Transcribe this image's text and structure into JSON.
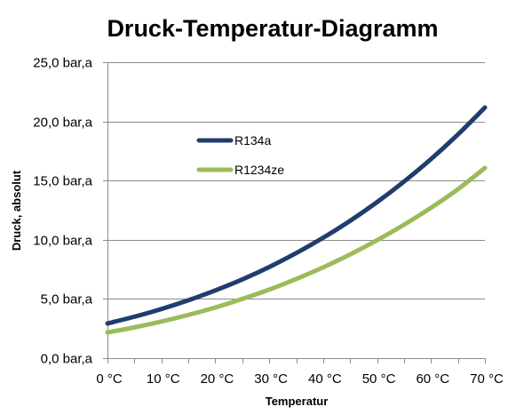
{
  "chart_data": {
    "type": "line",
    "title": "Druck-Temperatur-Diagramm",
    "xlabel": "Temperatur",
    "ylabel": "Druck, absolut",
    "x": [
      0,
      5,
      10,
      15,
      20,
      25,
      30,
      35,
      40,
      45,
      50,
      55,
      60,
      65,
      70
    ],
    "x_tick_values": [
      0,
      10,
      20,
      30,
      40,
      50,
      60,
      70
    ],
    "x_tick_labels": [
      "0 °C",
      "10 °C",
      "20 °C",
      "30 °C",
      "40 °C",
      "50 °C",
      "60 °C",
      "70 °C"
    ],
    "y_tick_values": [
      0,
      5,
      10,
      15,
      20,
      25
    ],
    "y_tick_labels": [
      "0,0 bar,a",
      "5,0 bar,a",
      "10,0 bar,a",
      "15,0 bar,a",
      "20,0 bar,a",
      "25,0 bar,a"
    ],
    "xlim": [
      0,
      70
    ],
    "ylim": [
      0,
      25
    ],
    "grid": "horizontal",
    "legend_position": "upper-left inside plot",
    "series": [
      {
        "name": "R134a",
        "color": "#1F3D6E",
        "values": [
          2.93,
          3.5,
          4.15,
          4.89,
          5.72,
          6.65,
          7.7,
          8.87,
          10.17,
          11.6,
          13.18,
          14.92,
          16.82,
          18.9,
          21.17
        ]
      },
      {
        "name": "R1234ze",
        "color": "#9BBB59",
        "values": [
          2.17,
          2.6,
          3.09,
          3.65,
          4.28,
          5.0,
          5.79,
          6.69,
          7.67,
          8.76,
          9.96,
          11.27,
          12.7,
          14.27,
          16.07
        ]
      }
    ]
  }
}
